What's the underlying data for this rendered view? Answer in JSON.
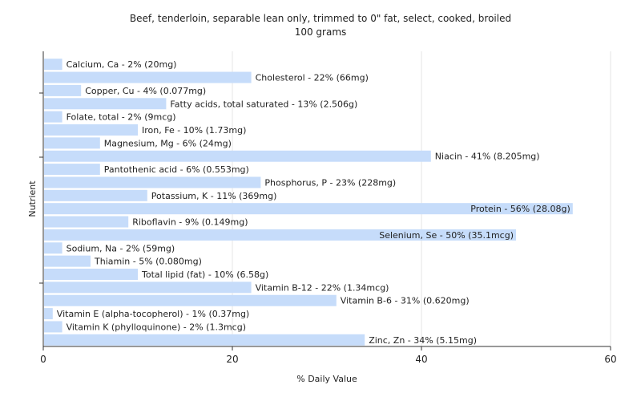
{
  "chart_data": {
    "type": "bar",
    "orientation": "horizontal",
    "title": "Beef, tenderloin, separable lean only, trimmed to 0\" fat, select, cooked, broiled",
    "subtitle": "100 grams",
    "xlabel": "% Daily Value",
    "ylabel": "Nutrient",
    "xlim": [
      0,
      60
    ],
    "xticks": [
      0,
      20,
      40,
      60
    ],
    "grid": true,
    "bar_color": "#c6dcfa",
    "categories": [
      "Calcium, Ca",
      "Cholesterol",
      "Copper, Cu",
      "Fatty acids, total saturated",
      "Folate, total",
      "Iron, Fe",
      "Magnesium, Mg",
      "Niacin",
      "Pantothenic acid",
      "Phosphorus, P",
      "Potassium, K",
      "Protein",
      "Riboflavin",
      "Selenium, Se",
      "Sodium, Na",
      "Thiamin",
      "Total lipid (fat)",
      "Vitamin B-12",
      "Vitamin B-6",
      "Vitamin E (alpha-tocopherol)",
      "Vitamin K (phylloquinone)",
      "Zinc, Zn"
    ],
    "values": [
      2,
      22,
      4,
      13,
      2,
      10,
      6,
      41,
      6,
      23,
      11,
      56,
      9,
      50,
      2,
      5,
      10,
      22,
      31,
      1,
      2,
      34
    ],
    "labels": [
      "Calcium, Ca - 2% (20mg)",
      "Cholesterol - 22% (66mg)",
      "Copper, Cu - 4% (0.077mg)",
      "Fatty acids, total saturated - 13% (2.506g)",
      "Folate, total - 2% (9mcg)",
      "Iron, Fe - 10% (1.73mg)",
      "Magnesium, Mg - 6% (24mg)",
      "Niacin - 41% (8.205mg)",
      "Pantothenic acid - 6% (0.553mg)",
      "Phosphorus, P - 23% (228mg)",
      "Potassium, K - 11% (369mg)",
      "Protein - 56% (28.08g)",
      "Riboflavin - 9% (0.149mg)",
      "Selenium, Se - 50% (35.1mcg)",
      "Sodium, Na - 2% (59mg)",
      "Thiamin - 5% (0.080mg)",
      "Total lipid (fat) - 10% (6.58g)",
      "Vitamin B-12 - 22% (1.34mcg)",
      "Vitamin B-6 - 31% (0.620mg)",
      "Vitamin E (alpha-tocopherol) - 1% (0.37mg)",
      "Vitamin K (phylloquinone) - 2% (1.3mcg)",
      "Zinc, Zn - 34% (5.15mg)"
    ]
  }
}
